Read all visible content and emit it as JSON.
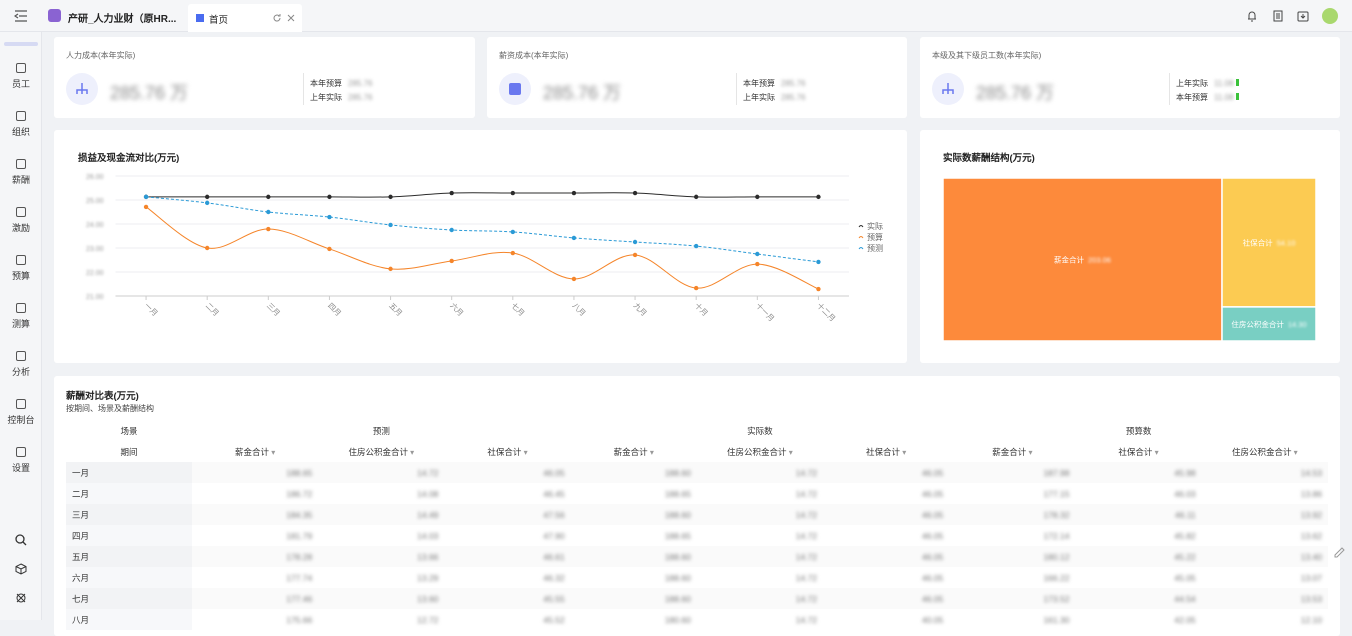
{
  "topbar": {
    "app_tab": "产研_人力业财（原HR...",
    "home_tab": "首页"
  },
  "sidebar": [
    "员工",
    "组织",
    "薪酬",
    "激励",
    "预算",
    "测算",
    "分析",
    "控制台",
    "设置"
  ],
  "kpis": [
    {
      "title": "人力成本(本年实际)",
      "value": "285.76 万",
      "items": [
        {
          "label": "本年预算",
          "value": "285.76"
        },
        {
          "label": "上年实际",
          "value": "285.76"
        }
      ]
    },
    {
      "title": "薪资成本(本年实际)",
      "value": "285.76 万",
      "items": [
        {
          "label": "本年预算",
          "value": "285.76"
        },
        {
          "label": "上年实际",
          "value": "285.76"
        }
      ]
    },
    {
      "title": "本级及其下级员工数(本年实际)",
      "value": "285.76 万",
      "items": [
        {
          "label": "上年实际",
          "value": "11.08"
        },
        {
          "label": "本年预算",
          "value": "11.08"
        }
      ]
    }
  ],
  "chart_data": [
    {
      "type": "line",
      "title": "损益及现金流对比(万元)",
      "categories": [
        "一月",
        "二月",
        "三月",
        "四月",
        "五月",
        "六月",
        "七月",
        "八月",
        "九月",
        "十月",
        "十一月",
        "十二月"
      ],
      "series": [
        {
          "name": "实际",
          "color": "#2b2b2b",
          "dashed": false,
          "values": [
            25.13,
            25.13,
            25.13,
            25.13,
            25.13,
            25.29,
            25.29,
            25.29,
            25.29,
            25.13,
            25.13,
            25.13
          ]
        },
        {
          "name": "预算",
          "color": "#f5852a",
          "dashed": false,
          "values": [
            24.71,
            23.0,
            23.79,
            22.96,
            22.13,
            22.46,
            22.79,
            21.71,
            22.71,
            21.33,
            22.33,
            21.29
          ]
        },
        {
          "name": "预测",
          "color": "#2a9ad6",
          "dashed": true,
          "values": [
            25.13,
            24.88,
            24.5,
            24.29,
            23.96,
            23.75,
            23.67,
            23.42,
            23.25,
            23.08,
            22.75,
            22.42
          ]
        }
      ],
      "ylim": [
        21,
        26
      ],
      "yticks": [
        {
          "value": 21,
          "label": "21.00"
        },
        {
          "value": 22,
          "label": "22.00"
        },
        {
          "value": 23,
          "label": "23.00"
        },
        {
          "value": 24,
          "label": "24.00"
        },
        {
          "value": 25,
          "label": "25.00"
        },
        {
          "value": 26,
          "label": "26.00"
        }
      ],
      "grid": true,
      "legend": "right"
    },
    {
      "type": "treemap",
      "title": "实际数薪酬结构(万元)",
      "categories": [
        "薪金合计",
        "社保合计",
        "住房公积金合计"
      ],
      "values": [
        203.06,
        54.1,
        14.3
      ],
      "value_labels": [
        "203.06",
        "54.10",
        "14.30"
      ],
      "colors": [
        "#fd8a3b",
        "#fccb52",
        "#79cfc3"
      ]
    }
  ],
  "table": {
    "title": "薪酬对比表(万元)",
    "subtitle": "按期间、场景及薪酬结构",
    "group_headers": [
      "场景",
      "预测",
      "实际数",
      "预算数"
    ],
    "column_headers": [
      "期间",
      "薪金合计",
      "住房公积金合计",
      "社保合计",
      "薪金合计",
      "住房公积金合计",
      "社保合计",
      "薪金合计",
      "社保合计",
      "住房公积金合计"
    ],
    "rows": [
      [
        "一月",
        "188.65",
        "14.72",
        "46.05",
        "188.60",
        "14.72",
        "46.05",
        "187.98",
        "45.98",
        "14.53"
      ],
      [
        "二月",
        "186.72",
        "14.08",
        "46.45",
        "188.65",
        "14.72",
        "46.05",
        "177.15",
        "46.03",
        "13.86"
      ],
      [
        "三月",
        "184.35",
        "14.49",
        "47.56",
        "188.60",
        "14.72",
        "46.05",
        "178.32",
        "46.11",
        "13.92"
      ],
      [
        "四月",
        "181.79",
        "14.03",
        "47.90",
        "188.65",
        "14.72",
        "46.05",
        "172.14",
        "45.82",
        "13.62"
      ],
      [
        "五月",
        "178.28",
        "13.66",
        "46.61",
        "188.60",
        "14.72",
        "46.05",
        "180.12",
        "45.22",
        "13.40"
      ],
      [
        "六月",
        "177.74",
        "13.29",
        "46.32",
        "188.60",
        "14.72",
        "46.05",
        "166.22",
        "45.05",
        "13.07"
      ],
      [
        "七月",
        "177.46",
        "13.60",
        "45.55",
        "188.60",
        "14.72",
        "46.05",
        "173.52",
        "44.54",
        "13.53"
      ],
      [
        "八月",
        "175.66",
        "12.72",
        "45.52",
        "180.60",
        "14.72",
        "40.05",
        "161.30",
        "42.05",
        "12.10"
      ]
    ]
  }
}
